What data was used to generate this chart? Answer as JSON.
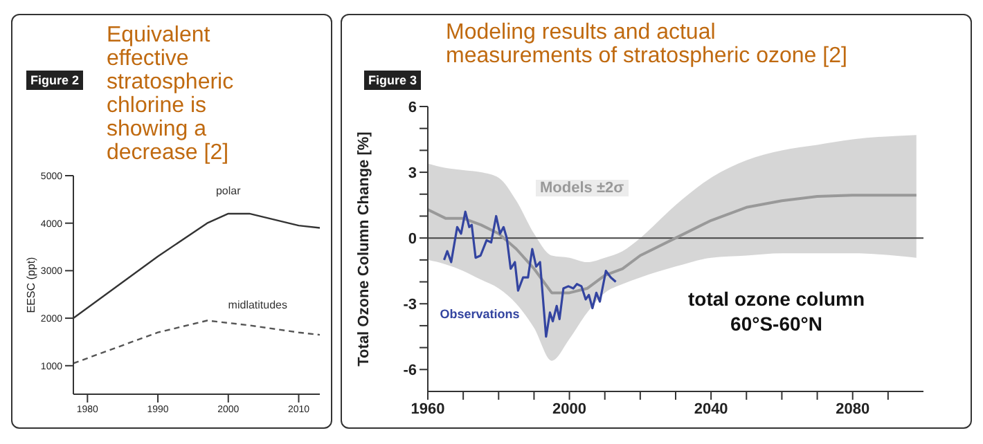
{
  "chart_data": [
    {
      "type": "line",
      "title": "Equivalent effective stratospheric chlorine is showing a decrease [2]",
      "ylabel": "EESC (ppt)",
      "annotations": [
        "Figure 2"
      ],
      "xlim": [
        1978,
        2013
      ],
      "xticks": [
        1980,
        1990,
        2000,
        2010
      ],
      "ylim": [
        400,
        5000
      ],
      "yticks": [
        1000,
        2000,
        3000,
        4000,
        5000
      ],
      "grid": false,
      "legend": false,
      "series": [
        {
          "name": "polar",
          "color": "#333333",
          "line_style": "solid",
          "x": [
            1978,
            1990,
            1997,
            2000,
            2003,
            2010,
            2013
          ],
          "values": [
            2000,
            3300,
            4000,
            4200,
            4200,
            3950,
            3900
          ]
        },
        {
          "name": "midlatitudes",
          "color": "#555555",
          "line_style": "dashed",
          "x": [
            1978,
            1990,
            1997,
            2000,
            2003,
            2010,
            2013
          ],
          "values": [
            1050,
            1700,
            1950,
            1900,
            1850,
            1700,
            1650
          ]
        }
      ]
    },
    {
      "type": "line",
      "title": "Modeling results and actual measurements of stratospheric ozone [2]",
      "ylabel": "Total Ozone Column Change [%]",
      "annotations": [
        "Figure 3",
        "total ozone column",
        "60°S-60°N"
      ],
      "xlim": [
        1960,
        2100
      ],
      "xticks": [
        1960,
        {
          "value": 1970,
          "label": null
        },
        {
          "value": 1980,
          "label": null
        },
        {
          "value": 1990,
          "label": null
        },
        2000,
        {
          "value": 2010,
          "label": null
        },
        {
          "value": 2020,
          "label": null
        },
        {
          "value": 2030,
          "label": null
        },
        2040,
        {
          "value": 2050,
          "label": null
        },
        {
          "value": 2060,
          "label": null
        },
        {
          "value": 2070,
          "label": null
        },
        2080,
        {
          "value": 2090,
          "label": null
        }
      ],
      "ylim": [
        -7,
        6
      ],
      "yticks": [
        {
          "value": -6,
          "label": "-6"
        },
        {
          "value": -5,
          "label": null
        },
        {
          "value": -4,
          "label": null
        },
        {
          "value": -3,
          "label": "-3"
        },
        {
          "value": -2,
          "label": null
        },
        {
          "value": -1,
          "label": null
        },
        0,
        {
          "value": 1,
          "label": null
        },
        {
          "value": 2,
          "label": null
        },
        3,
        {
          "value": 4,
          "label": null
        },
        {
          "value": 5,
          "label": null
        },
        6
      ],
      "grid": false,
      "legend": false,
      "ref_lines": [
        {
          "axis": "y",
          "value": 0,
          "color": "#444444"
        }
      ],
      "series": [
        {
          "name": "Models ±2σ",
          "color": "#999999",
          "x": [
            1960,
            1965,
            1970,
            1975,
            1980,
            1985,
            1990,
            1995,
            2000,
            2005,
            2010,
            2015,
            2020,
            2030,
            2040,
            2050,
            2060,
            2070,
            2080,
            2098
          ],
          "values": [
            1.3,
            0.9,
            0.9,
            0.6,
            0.2,
            -0.5,
            -1.4,
            -2.5,
            -2.5,
            -2.3,
            -1.7,
            -1.4,
            -0.8,
            0,
            0.8,
            1.4,
            1.7,
            1.9,
            1.95,
            1.95
          ],
          "lower": [
            -1.0,
            -1.2,
            -1.5,
            -1.9,
            -2.3,
            -3.0,
            -4.1,
            -5.6,
            -4.6,
            -3.4,
            -2.5,
            -2.1,
            -1.8,
            -1.3,
            -0.9,
            -0.8,
            -0.7,
            -0.7,
            -0.7,
            -0.9
          ],
          "upper": [
            3.4,
            3.2,
            3.1,
            3.0,
            2.75,
            1.7,
            0.2,
            -0.8,
            -0.9,
            -1.1,
            -0.9,
            -0.6,
            0,
            1.5,
            2.75,
            3.55,
            4.0,
            4.25,
            4.5,
            4.7
          ]
        },
        {
          "name": "Observations",
          "color": "#3344a0",
          "x": [
            1964.6,
            1965.5,
            1966.6,
            1968.3,
            1969.4,
            1970.6,
            1971.7,
            1972.4,
            1973.5,
            1974.9,
            1976.6,
            1977.9,
            1979.3,
            1980.4,
            1981.4,
            1982.3,
            1983.4,
            1984.6,
            1985.5,
            1986.9,
            1988.3,
            1989.5,
            1990.6,
            1991.7,
            1993.4,
            1994.5,
            1995.3,
            1996.4,
            1997.2,
            1998.3,
            1999.7,
            2001.1,
            2002.1,
            2003.4,
            2004.6,
            2005.5,
            2006.5,
            2007.6,
            2008.6,
            2010.3,
            2011.7,
            2013.1
          ],
          "values": [
            -1.0,
            -0.6,
            -1.1,
            0.5,
            0.2,
            1.2,
            0.5,
            0.6,
            -0.9,
            -0.8,
            -0.1,
            -0.2,
            1.0,
            0.2,
            0.5,
            0,
            -1.4,
            -1.1,
            -2.4,
            -1.8,
            -1.8,
            -0.5,
            -1.3,
            -1.1,
            -4.5,
            -3.4,
            -3.8,
            -3.1,
            -3.7,
            -2.3,
            -2.2,
            -2.3,
            -2.1,
            -2.2,
            -2.8,
            -2.6,
            -3.2,
            -2.5,
            -2.9,
            -1.5,
            -1.8,
            -2.0
          ]
        }
      ]
    }
  ]
}
